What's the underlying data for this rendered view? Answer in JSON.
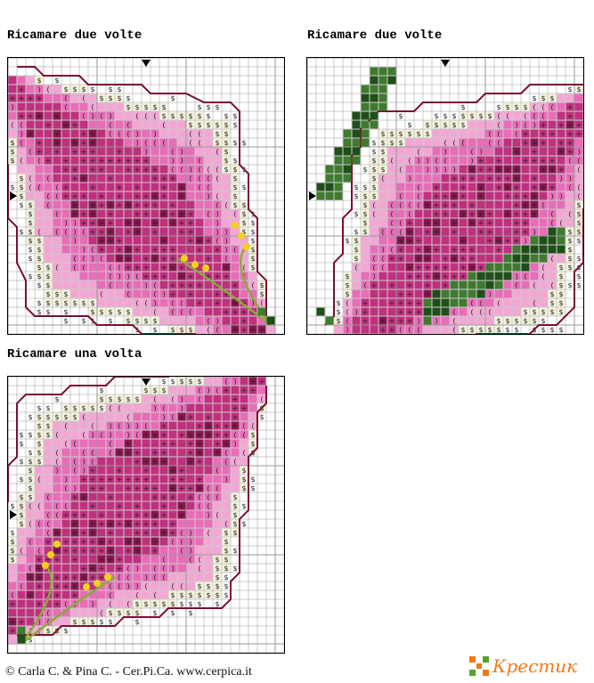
{
  "panels": [
    {
      "title": "Ricamare due volte"
    },
    {
      "title": "Ricamare due volte"
    },
    {
      "title": "Ricamare una volta"
    }
  ],
  "footer": {
    "copyright": "© Carla C. & Pina C. - Cer.Pi.Ca. www.cerpica.it"
  },
  "logo": {
    "text": "Крестик"
  },
  "colors": {
    "light_pink": "#f3a6d4",
    "mid_pink": "#e86cb8",
    "deep_pink": "#c0307f",
    "dark_magenta": "#8a1550",
    "outline": "#7a1030",
    "leaf_green": "#3f7a30",
    "dark_green": "#1f4f18",
    "stem_green": "#8aaa3a",
    "bead_yellow": "#f2d21a",
    "cream": "#f4f2dc",
    "logo_orange": "#f07a1a",
    "logo_green": "#5aa02c"
  }
}
